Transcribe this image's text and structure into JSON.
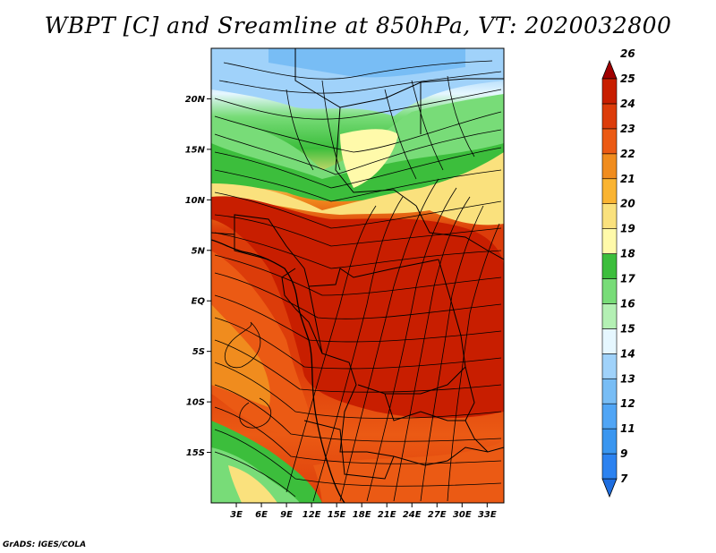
{
  "title": "WBPT [C] and Sreamline at 850hPa, VT: 2020032800",
  "credit": "GrADS: IGES/COLA",
  "map": {
    "lat_labels": [
      "20N",
      "15N",
      "10N",
      "5N",
      "EQ",
      "5S",
      "10S",
      "15S"
    ],
    "lat_values": [
      20,
      15,
      10,
      5,
      0,
      -5,
      -10,
      -15
    ],
    "lon_labels": [
      "3E",
      "6E",
      "9E",
      "12E",
      "15E",
      "18E",
      "21E",
      "24E",
      "27E",
      "30E",
      "33E"
    ],
    "lon_values": [
      3,
      6,
      9,
      12,
      15,
      18,
      21,
      24,
      27,
      30,
      33
    ],
    "lon_range": [
      0,
      35
    ],
    "lat_range": [
      -20,
      25
    ]
  },
  "colorbar": {
    "levels": [
      "7",
      "9",
      "11",
      "12",
      "13",
      "14",
      "15",
      "16",
      "17",
      "18",
      "19",
      "20",
      "21",
      "22",
      "23",
      "24",
      "25",
      "26"
    ],
    "colors": [
      "#1e6ee0",
      "#2c82f0",
      "#3a96f0",
      "#50a5f5",
      "#78bdf5",
      "#a0d2fa",
      "#e6f7ff",
      "#b4f0b4",
      "#78dc78",
      "#3cbe3c",
      "#fffaaa",
      "#fae17d",
      "#fab432",
      "#f08c1e",
      "#eb5a14",
      "#dc3c0a",
      "#c81e00",
      "#a00000"
    ]
  },
  "colors": {
    "land_boundary": "#000000",
    "streamline": "#000000"
  }
}
